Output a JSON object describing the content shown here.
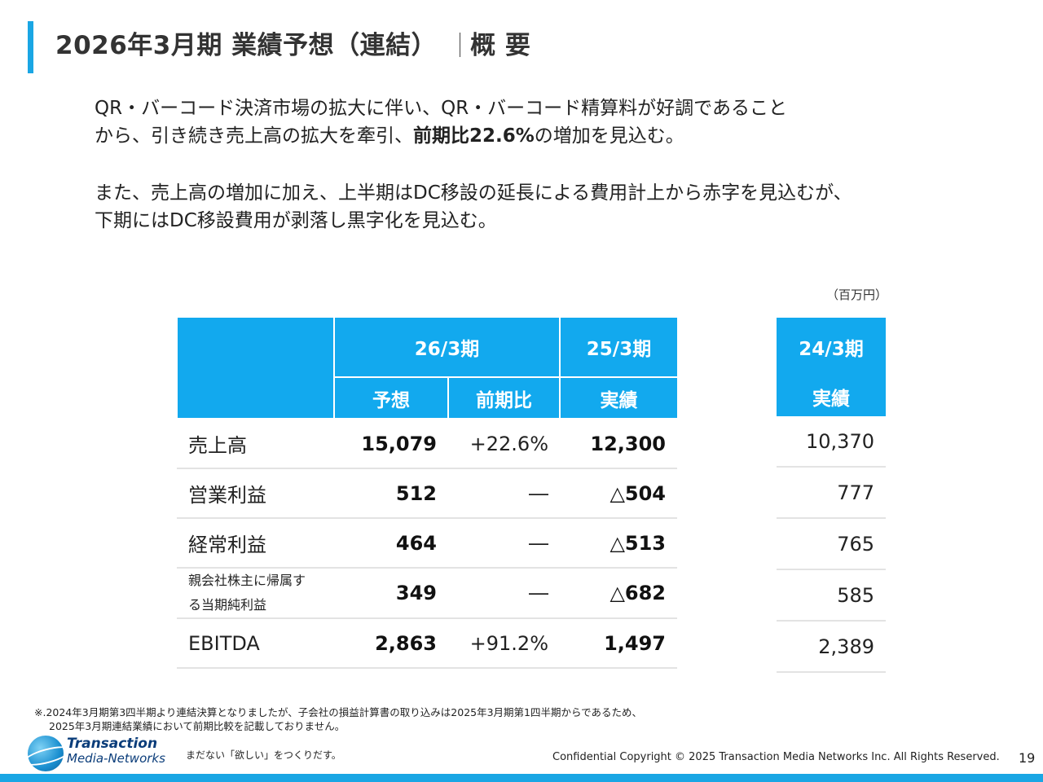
{
  "title": {
    "main": "2026年3月期 業績予想（連結）",
    "sub": "概 要"
  },
  "paragraphs": {
    "p1_line1": "QR・バーコード決済市場の拡大に伴い、QR・バーコード精算料が好調であること",
    "p1_line2_pre": "から、引き続き売上高の拡大を牽引、",
    "p1_line2_bold": "前期比22.6%",
    "p1_line2_post": "の増加を見込む。",
    "p2_line1": "また、売上高の増加に加え、上半期はDC移設の延長による費用計上から赤字を見込むが、",
    "p2_line2": "下期にはDC移設費用が剥落し黒字化を見込む。"
  },
  "unit": "（百万円）",
  "table": {
    "headers": {
      "period_26": "26/3期",
      "period_25": "25/3期",
      "forecast": "予想",
      "yoy": "前期比",
      "actual_25": "実績"
    },
    "rows": [
      {
        "label": "売上高",
        "forecast": "15,079",
        "yoy": "+22.6%",
        "actual": "12,300"
      },
      {
        "label": "営業利益",
        "forecast": "512",
        "yoy": "―",
        "actual": "△504"
      },
      {
        "label": "経常利益",
        "forecast": "464",
        "yoy": "―",
        "actual": "△513"
      },
      {
        "label_line1": "親会社株主に帰属す",
        "label_line2": "る当期純利益",
        "forecast": "349",
        "yoy": "―",
        "actual": "△682"
      },
      {
        "label": "EBITDA",
        "forecast": "2,863",
        "yoy": "+91.2%",
        "actual": "1,497"
      }
    ]
  },
  "side_table": {
    "period": "24/3期",
    "actual": "実績",
    "values": [
      "10,370",
      "777",
      "765",
      "585",
      "2,389"
    ]
  },
  "footnote": {
    "line1": "※.2024年3月期第3四半期より連結決算となりましたが、子会社の損益計算書の取り込みは2025年3月期第1四半期からであるため、",
    "line2": "2025年3月期連結業績において前期比較を記載しておりません。"
  },
  "footer": {
    "logo_line1": "Transaction",
    "logo_line2": "Media-Networks",
    "tagline": "まだない「欲しい」をつくりだす。",
    "copyright": "Confidential  Copyright © 2025 Transaction Media Networks Inc. All Rights Reserved.",
    "page_number": "19"
  },
  "colors": {
    "accent": "#1aa6e4",
    "header_bg": "#12a9ee"
  }
}
